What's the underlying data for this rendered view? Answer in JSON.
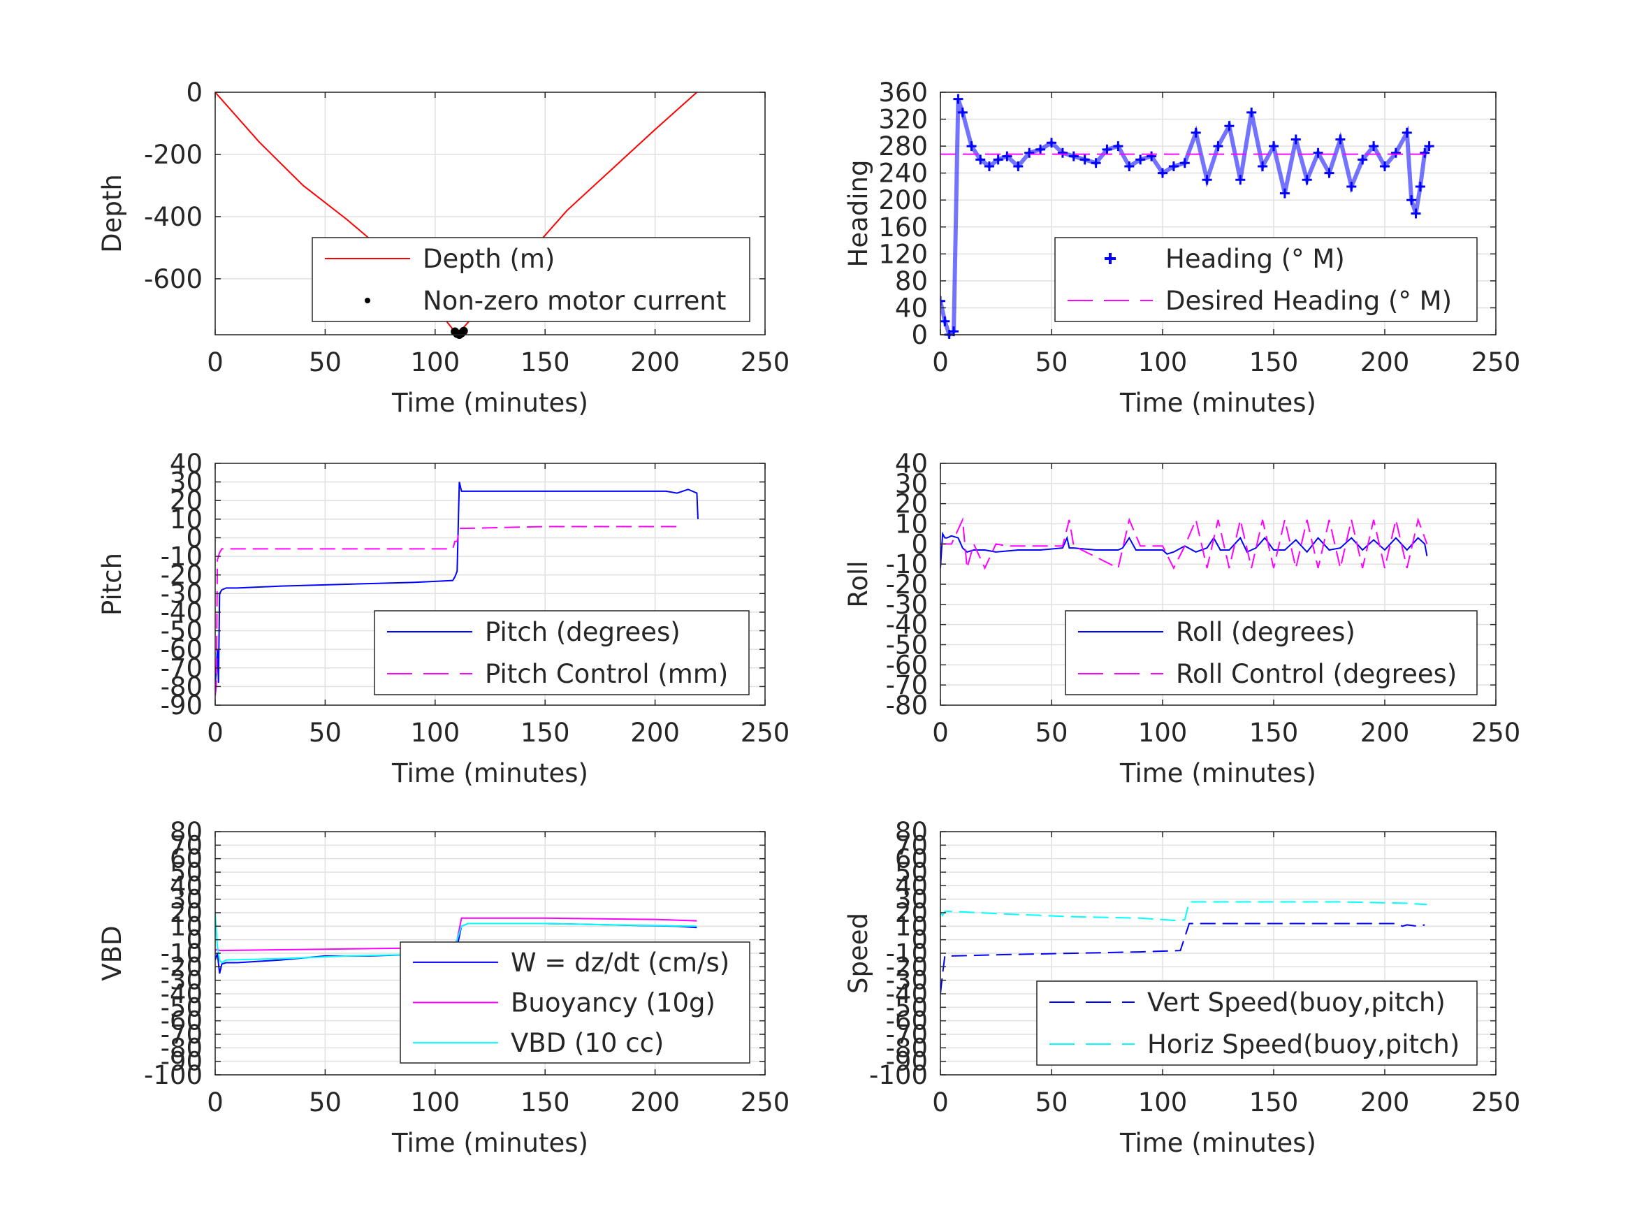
{
  "chart_data": [
    {
      "type": "line",
      "ylabel": "Depth",
      "xlabel": "Time (minutes)",
      "xlim": [
        0,
        250
      ],
      "ylim": [
        -780,
        0
      ],
      "xticks": [
        0,
        50,
        100,
        150,
        200,
        250
      ],
      "yticks": [
        0,
        -200,
        -400,
        -600
      ],
      "yticklabels": [
        "0",
        "-200",
        "-400",
        "-600"
      ],
      "grid": true,
      "legend_position": "bottom-right",
      "series": [
        {
          "name": "Depth (m)",
          "color": "#ff0000",
          "style": "solid",
          "x": [
            0,
            20,
            40,
            60,
            80,
            100,
            110,
            120,
            140,
            160,
            180,
            200,
            219
          ],
          "y": [
            0,
            -160,
            -300,
            -410,
            -530,
            -690,
            -780,
            -700,
            -540,
            -380,
            -250,
            -120,
            0
          ]
        },
        {
          "name": "Non-zero motor current",
          "color": "#000000",
          "style": "dot",
          "x": [
            109,
            110,
            111,
            112,
            113
          ],
          "y": [
            -770,
            -777,
            -780,
            -775,
            -768
          ]
        }
      ]
    },
    {
      "type": "scatter",
      "ylabel": "Heading",
      "xlabel": "Time (minutes)",
      "xlim": [
        0,
        250
      ],
      "ylim": [
        0,
        360
      ],
      "xticks": [
        0,
        50,
        100,
        150,
        200,
        250
      ],
      "yticks": [
        0,
        40,
        80,
        120,
        160,
        200,
        240,
        280,
        320,
        360
      ],
      "yticklabels": [
        "0",
        "40",
        "80",
        "120",
        "160",
        "200",
        "240",
        "280",
        "320",
        "360"
      ],
      "grid": true,
      "legend_position": "bottom-right",
      "series": [
        {
          "name": "Heading (° M)",
          "color": "#0000ff",
          "style": "plus",
          "x": [
            0,
            2,
            4,
            6,
            8,
            10,
            14,
            18,
            22,
            26,
            30,
            35,
            40,
            45,
            50,
            55,
            60,
            65,
            70,
            75,
            80,
            85,
            90,
            95,
            100,
            105,
            110,
            115,
            120,
            125,
            130,
            135,
            140,
            145,
            150,
            155,
            160,
            165,
            170,
            175,
            180,
            185,
            190,
            195,
            200,
            205,
            210,
            212,
            214,
            216,
            218,
            220
          ],
          "y": [
            50,
            20,
            0,
            5,
            350,
            330,
            280,
            260,
            250,
            260,
            265,
            250,
            270,
            275,
            285,
            270,
            265,
            260,
            255,
            275,
            280,
            250,
            260,
            265,
            240,
            250,
            255,
            300,
            230,
            280,
            310,
            230,
            330,
            250,
            280,
            210,
            290,
            230,
            270,
            240,
            290,
            220,
            260,
            280,
            250,
            270,
            300,
            200,
            180,
            220,
            270,
            280
          ]
        },
        {
          "name": "Desired Heading (° M)",
          "color": "#ff00ff",
          "style": "dashed",
          "x": [
            0,
            220
          ],
          "y": [
            268,
            268
          ]
        }
      ]
    },
    {
      "type": "line",
      "ylabel": "Pitch",
      "xlabel": "Time (minutes)",
      "xlim": [
        0,
        250
      ],
      "ylim": [
        -90,
        40
      ],
      "xticks": [
        0,
        50,
        100,
        150,
        200,
        250
      ],
      "yticks": [
        40,
        30,
        20,
        10,
        0,
        -10,
        -20,
        -30,
        -40,
        -50,
        -60,
        -70,
        -80,
        -90
      ],
      "yticklabels": [
        "40",
        "30",
        "20",
        "10",
        "0",
        "-10",
        "-20",
        "-30",
        "-40",
        "-50",
        "-60",
        "-70",
        "-80",
        "-90"
      ],
      "grid": true,
      "legend_position": "bottom-right",
      "series": [
        {
          "name": "Pitch (degrees)",
          "color": "#0000ff",
          "style": "solid",
          "x": [
            0,
            1,
            1.5,
            2,
            3,
            5,
            10,
            30,
            60,
            90,
            108,
            109,
            110,
            111,
            112,
            113,
            120,
            150,
            180,
            205,
            210,
            215,
            219,
            219.5
          ],
          "y": [
            -80,
            -60,
            -78,
            -30,
            -28,
            -27,
            -27,
            -26,
            -25,
            -24,
            -23,
            -21,
            -18,
            30,
            25,
            25,
            25,
            25,
            25,
            25,
            24,
            26,
            24,
            10
          ]
        },
        {
          "name": "Pitch Control (mm)",
          "color": "#ff00ff",
          "style": "dashed",
          "x": [
            0,
            0.5,
            1,
            2,
            3,
            5,
            50,
            100,
            108,
            109,
            110,
            111,
            112,
            150,
            200,
            212
          ],
          "y": [
            -85,
            -80,
            -12,
            -8,
            -6,
            -6,
            -6,
            -6,
            -6,
            -2,
            -2,
            5,
            5,
            6,
            6,
            6
          ]
        }
      ]
    },
    {
      "type": "line",
      "ylabel": "Roll",
      "xlabel": "Time (minutes)",
      "xlim": [
        0,
        250
      ],
      "ylim": [
        -80,
        40
      ],
      "xticks": [
        0,
        50,
        100,
        150,
        200,
        250
      ],
      "yticks": [
        40,
        30,
        20,
        10,
        0,
        -10,
        -20,
        -30,
        -40,
        -50,
        -60,
        -70,
        -80
      ],
      "yticklabels": [
        "40",
        "30",
        "20",
        "10",
        "0",
        "-10",
        "-20",
        "-30",
        "-40",
        "-50",
        "-60",
        "-70",
        "-80"
      ],
      "grid": true,
      "legend_position": "bottom-right",
      "series": [
        {
          "name": "Roll (degrees)",
          "color": "#0000ff",
          "style": "solid",
          "x": [
            0,
            1,
            2,
            3,
            5,
            8,
            10,
            12,
            15,
            20,
            25,
            35,
            45,
            55,
            57,
            58,
            60,
            70,
            80,
            82,
            85,
            88,
            95,
            100,
            102,
            105,
            110,
            115,
            120,
            123,
            126,
            130,
            135,
            138,
            142,
            146,
            150,
            155,
            160,
            165,
            170,
            175,
            180,
            185,
            190,
            195,
            200,
            205,
            210,
            215,
            218,
            219
          ],
          "y": [
            -12,
            5,
            3,
            3,
            4,
            3,
            -2,
            -4,
            -3,
            -3,
            -4,
            -3,
            -3,
            -2,
            3,
            -2,
            -2,
            -3,
            -3,
            -2,
            3,
            -3,
            -3,
            -3,
            -5,
            -4,
            -1,
            -4,
            -2,
            3,
            -3,
            -3,
            3,
            -4,
            -2,
            3,
            -3,
            -3,
            2,
            -4,
            3,
            -3,
            -2,
            3,
            -3,
            2,
            -3,
            3,
            -3,
            3,
            0,
            -6
          ]
        },
        {
          "name": "Roll Control (degrees)",
          "color": "#ff00ff",
          "style": "dashed",
          "x": [
            0,
            5,
            10,
            12,
            15,
            20,
            25,
            30,
            50,
            55,
            58,
            60,
            80,
            85,
            90,
            100,
            105,
            110,
            115,
            120,
            125,
            130,
            135,
            140,
            145,
            150,
            155,
            160,
            165,
            170,
            175,
            180,
            185,
            190,
            195,
            200,
            205,
            210,
            215,
            219
          ],
          "y": [
            0,
            0,
            12,
            -12,
            0,
            -12,
            0,
            -1,
            -1,
            -1,
            12,
            -1,
            -12,
            12,
            -1,
            -1,
            -12,
            -1,
            12,
            -12,
            12,
            -12,
            12,
            -12,
            12,
            -12,
            12,
            -12,
            12,
            -12,
            12,
            -12,
            12,
            -12,
            12,
            -12,
            12,
            -12,
            12,
            0
          ]
        }
      ]
    },
    {
      "type": "line",
      "ylabel": "VBD",
      "xlabel": "Time (minutes)",
      "xlim": [
        0,
        250
      ],
      "ylim": [
        -100,
        80
      ],
      "xticks": [
        0,
        50,
        100,
        150,
        200,
        250
      ],
      "yticks": [
        80,
        70,
        60,
        50,
        40,
        30,
        20,
        10,
        0,
        -10,
        -20,
        -30,
        -40,
        -50,
        -60,
        -70,
        -80,
        -90,
        -100
      ],
      "yticklabels": [
        "80",
        "70",
        "60",
        "50",
        "40",
        "30",
        "20",
        "10",
        "0",
        "-10",
        "-20",
        "-30",
        "-40",
        "-50",
        "-60",
        "-70",
        "-80",
        "-90",
        "-100"
      ],
      "grid": true,
      "legend_position": "bottom-right",
      "series": [
        {
          "name": "W = dz/dt (cm/s)",
          "color": "#0000ff",
          "style": "solid",
          "x": [
            0,
            1,
            2,
            3,
            5,
            10,
            30,
            50,
            70,
            90,
            105,
            108,
            110,
            112,
            115,
            150,
            180,
            210,
            219
          ],
          "y": [
            -15,
            -10,
            -25,
            -18,
            -17,
            -17,
            -15,
            -12,
            -12,
            -11,
            -10,
            -9,
            -5,
            10,
            12,
            12,
            11,
            10,
            9
          ]
        },
        {
          "name": "Buoyancy (10g)",
          "color": "#ff00ff",
          "style": "solid",
          "x": [
            0,
            1,
            2,
            50,
            100,
            108,
            110,
            112,
            150,
            200,
            219
          ],
          "y": [
            -8,
            -7,
            -8,
            -7,
            -6,
            -6,
            0,
            16,
            16,
            15,
            14
          ]
        },
        {
          "name": "VBD (10 cc)",
          "color": "#00ffff",
          "style": "solid",
          "x": [
            0,
            1,
            2,
            3,
            5,
            30,
            60,
            90,
            108,
            110,
            112,
            115,
            150,
            180,
            219
          ],
          "y": [
            20,
            -5,
            -15,
            -17,
            -15,
            -14,
            -12,
            -11,
            -10,
            0,
            10,
            12,
            12,
            11,
            10
          ]
        }
      ]
    },
    {
      "type": "line",
      "ylabel": "Speed",
      "xlabel": "Time (minutes)",
      "xlim": [
        0,
        250
      ],
      "ylim": [
        -100,
        80
      ],
      "xticks": [
        0,
        50,
        100,
        150,
        200,
        250
      ],
      "yticks": [
        80,
        70,
        60,
        50,
        40,
        30,
        20,
        10,
        0,
        -10,
        -20,
        -30,
        -40,
        -50,
        -60,
        -70,
        -80,
        -90,
        -100
      ],
      "yticklabels": [
        "80",
        "70",
        "60",
        "50",
        "40",
        "30",
        "20",
        "10",
        "0",
        "-10",
        "-20",
        "-30",
        "-40",
        "-50",
        "-60",
        "-70",
        "-80",
        "-90",
        "-100"
      ],
      "grid": true,
      "legend_position": "bottom-right",
      "series": [
        {
          "name": "Vert Speed(buoy,pitch)",
          "color": "#0000ff",
          "style": "dashed",
          "x": [
            0,
            1,
            2,
            5,
            30,
            60,
            90,
            108,
            110,
            112,
            115,
            150,
            180,
            205,
            208,
            210,
            215,
            218
          ],
          "y": [
            -40,
            -25,
            -12,
            -12,
            -11,
            -10,
            -9,
            -8,
            2,
            12,
            12,
            12,
            12,
            12,
            10,
            11,
            10,
            11
          ]
        },
        {
          "name": "Horiz Speed(buoy,pitch)",
          "color": "#00ffff",
          "style": "dashed",
          "x": [
            0,
            1,
            2,
            5,
            30,
            60,
            90,
            108,
            110,
            112,
            150,
            180,
            210,
            219
          ],
          "y": [
            20,
            18,
            21,
            21,
            19,
            17,
            16,
            14,
            15,
            28,
            28,
            28,
            27,
            26
          ]
        }
      ]
    }
  ]
}
